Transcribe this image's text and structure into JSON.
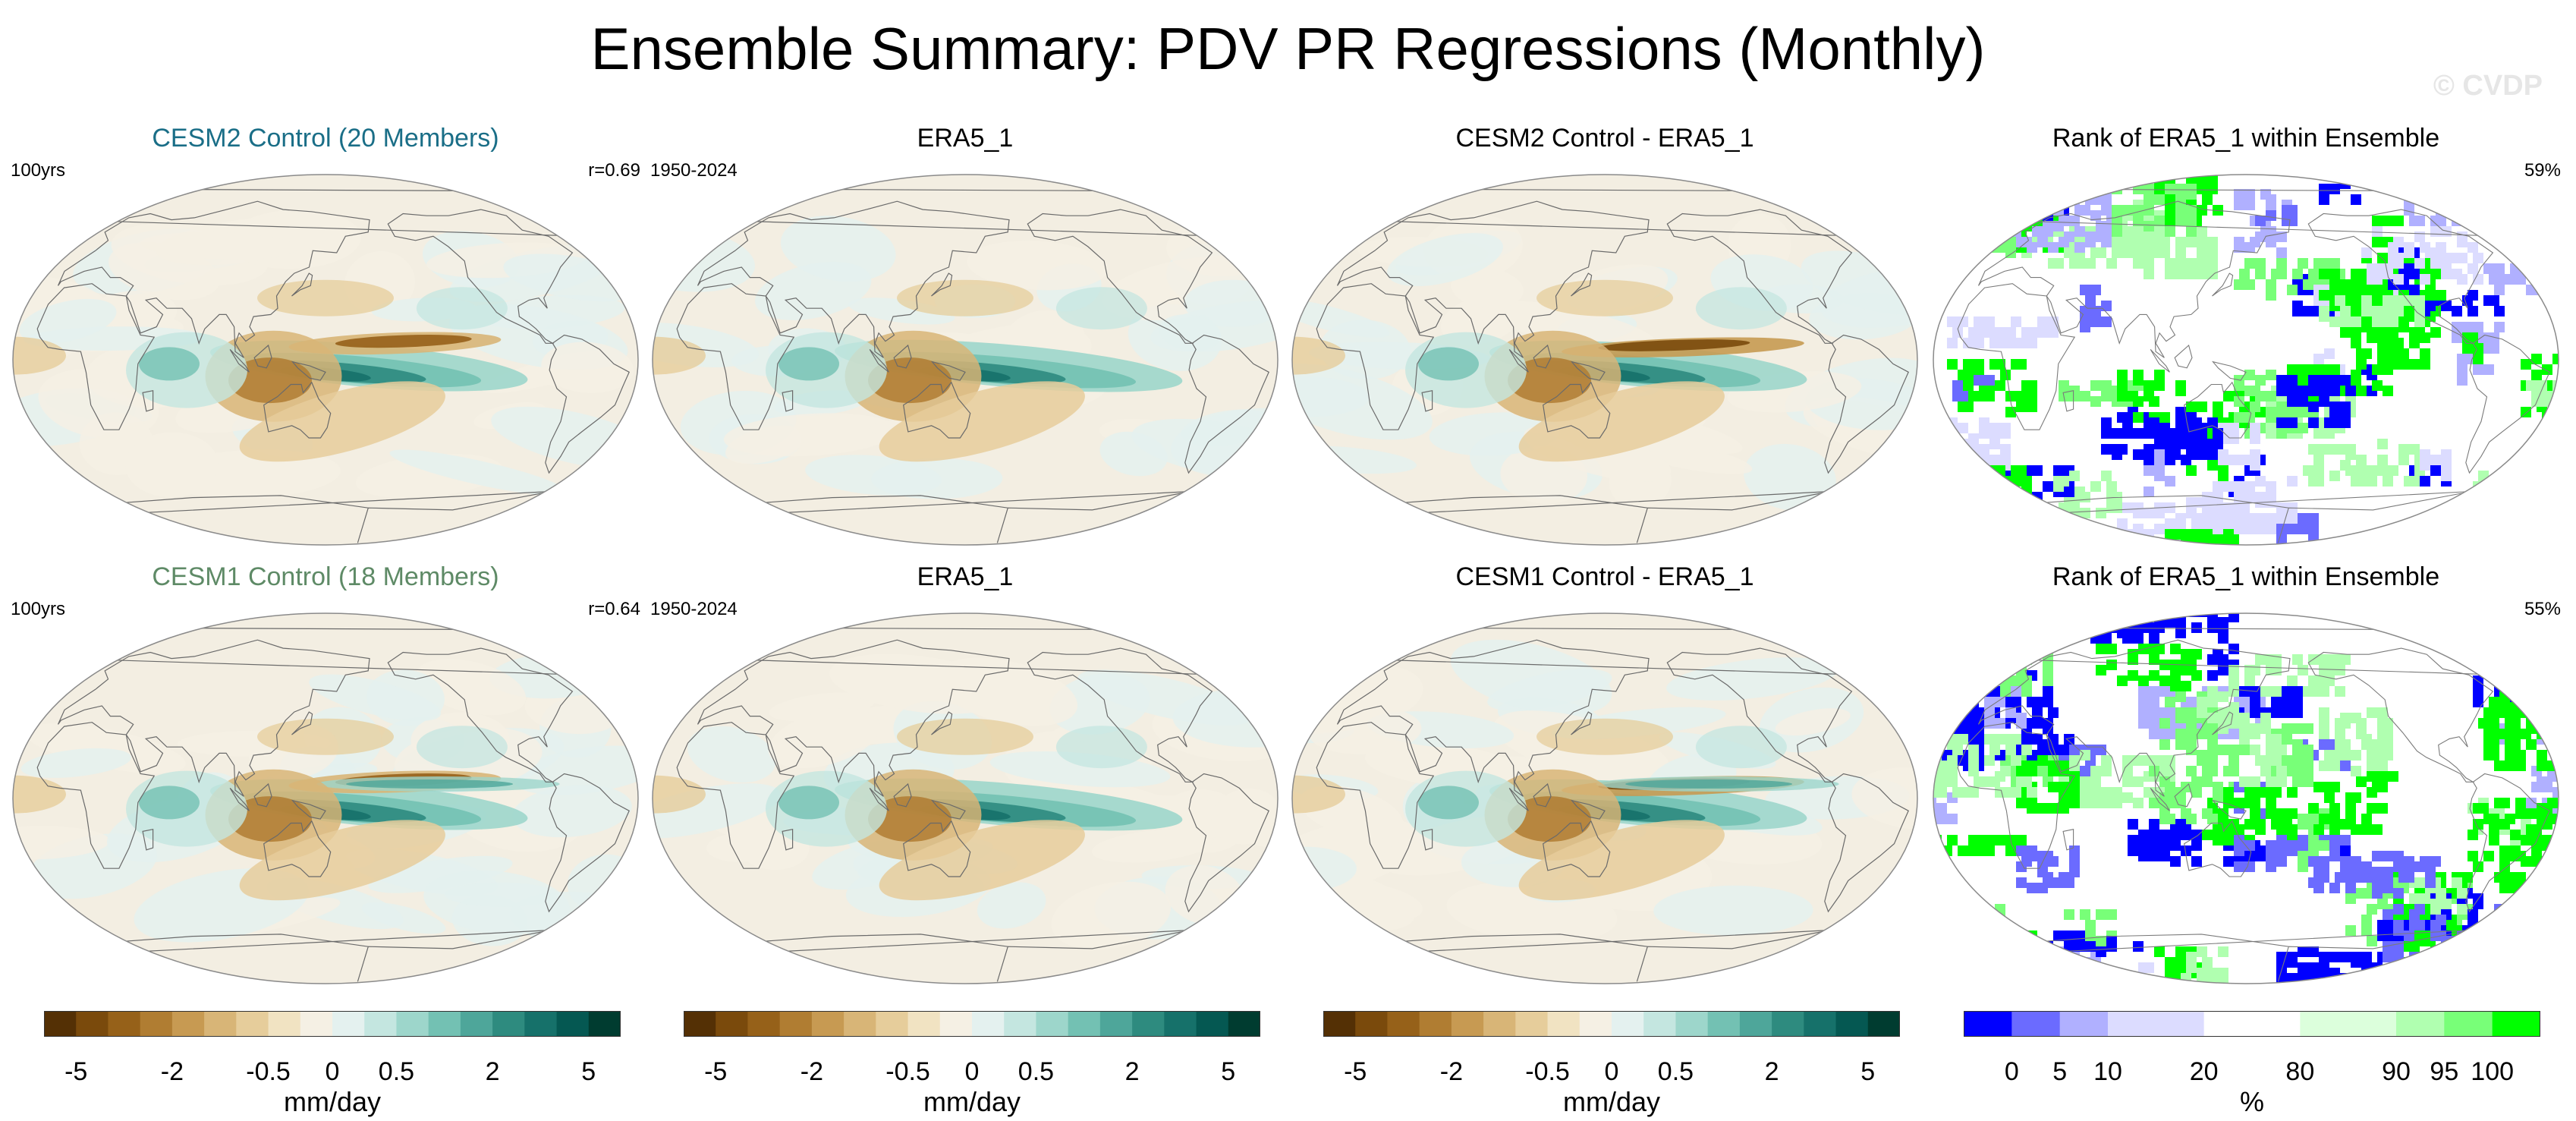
{
  "title": "Ensemble Summary: PDV PR Regressions (Monthly)",
  "watermark": "© CVDP",
  "colors": {
    "cesm2_title": "#1a6e87",
    "cesm1_title": "#5e8a66",
    "land_outline": "#555555",
    "map_border": "#888888"
  },
  "panels": [
    {
      "title": "CESM2 Control (20 Members)",
      "left": "100yrs",
      "right": "r=0.69",
      "title_color": "#1a6e87",
      "kind": "pr",
      "variant": 0
    },
    {
      "title": "ERA5_1",
      "left": "1950-2024",
      "right": "",
      "title_color": "#000000",
      "kind": "pr",
      "variant": 1
    },
    {
      "title": "CESM2 Control - ERA5_1",
      "left": "",
      "right": "",
      "title_color": "#000000",
      "kind": "pr",
      "variant": 2
    },
    {
      "title": "Rank of ERA5_1 within Ensemble",
      "left": "",
      "right": "59%",
      "title_color": "#000000",
      "kind": "rank",
      "variant": 3
    },
    {
      "title": "CESM1 Control (18 Members)",
      "left": "100yrs",
      "right": "r=0.64",
      "title_color": "#5e8a66",
      "kind": "pr",
      "variant": 4
    },
    {
      "title": "ERA5_1",
      "left": "1950-2024",
      "right": "",
      "title_color": "#000000",
      "kind": "pr",
      "variant": 5
    },
    {
      "title": "CESM1 Control - ERA5_1",
      "left": "",
      "right": "",
      "title_color": "#000000",
      "kind": "pr",
      "variant": 6
    },
    {
      "title": "Rank of ERA5_1 within Ensemble",
      "left": "",
      "right": "55%",
      "title_color": "#000000",
      "kind": "rank",
      "variant": 7
    }
  ],
  "colorbars": [
    {
      "label": "mm/day",
      "colors": [
        "#543005",
        "#7a4a0c",
        "#966119",
        "#b07d32",
        "#c79a52",
        "#d8b577",
        "#e6cd9b",
        "#f1e3c2",
        "#f5f0e4",
        "#e4f1ef",
        "#c4e6e0",
        "#9dd6cb",
        "#73c1b3",
        "#4ea69a",
        "#2e8b7f",
        "#16716a",
        "#055852",
        "#003c30"
      ],
      "ticks": [
        "-5",
        "-2",
        "-0.5",
        "0",
        "0.5",
        "2",
        "5"
      ],
      "tick_edges": [
        1,
        4,
        7,
        9,
        11,
        14,
        17
      ]
    },
    {
      "label": "mm/day",
      "colors": [
        "#543005",
        "#7a4a0c",
        "#966119",
        "#b07d32",
        "#c79a52",
        "#d8b577",
        "#e6cd9b",
        "#f1e3c2",
        "#f5f0e4",
        "#e4f1ef",
        "#c4e6e0",
        "#9dd6cb",
        "#73c1b3",
        "#4ea69a",
        "#2e8b7f",
        "#16716a",
        "#055852",
        "#003c30"
      ],
      "ticks": [
        "-5",
        "-2",
        "-0.5",
        "0",
        "0.5",
        "2",
        "5"
      ],
      "tick_edges": [
        1,
        4,
        7,
        9,
        11,
        14,
        17
      ]
    },
    {
      "label": "mm/day",
      "colors": [
        "#543005",
        "#7a4a0c",
        "#966119",
        "#b07d32",
        "#c79a52",
        "#d8b577",
        "#e6cd9b",
        "#f1e3c2",
        "#f5f0e4",
        "#e4f1ef",
        "#c4e6e0",
        "#9dd6cb",
        "#73c1b3",
        "#4ea69a",
        "#2e8b7f",
        "#16716a",
        "#055852",
        "#003c30"
      ],
      "ticks": [
        "-5",
        "-2",
        "-0.5",
        "0",
        "0.5",
        "2",
        "5"
      ],
      "tick_edges": [
        1,
        4,
        7,
        9,
        11,
        14,
        17
      ]
    },
    {
      "label": "%",
      "colors": [
        "#0000ff",
        "#6b6bff",
        "#b0b0ff",
        "#dcdcff",
        "#dcdcff",
        "#ffffff",
        "#ffffff",
        "#dcffdc",
        "#dcffdc",
        "#b0ffb0",
        "#78ff78",
        "#00ff00"
      ],
      "ticks": [
        "0",
        "5",
        "10",
        "20",
        "80",
        "90",
        "95",
        "100"
      ],
      "tick_edges": [
        1,
        2,
        3,
        5,
        7,
        9,
        10,
        11
      ]
    }
  ],
  "chart_data": [
    {
      "type": "heatmap",
      "title": "CESM2 Control (20 Members)",
      "subtitle_left": "100yrs",
      "subtitle_right": "r=0.69",
      "field": "PR regression onto PDV",
      "units": "mm/day",
      "levels": [
        -5,
        -2,
        -0.5,
        0,
        0.5,
        2,
        5
      ],
      "pattern_correlation": 0.69
    },
    {
      "type": "heatmap",
      "title": "ERA5_1",
      "subtitle_left": "1950-2024",
      "units": "mm/day",
      "levels": [
        -5,
        -2,
        -0.5,
        0,
        0.5,
        2,
        5
      ]
    },
    {
      "type": "heatmap",
      "title": "CESM2 Control - ERA5_1",
      "units": "mm/day",
      "levels": [
        -5,
        -2,
        -0.5,
        0,
        0.5,
        2,
        5
      ]
    },
    {
      "type": "heatmap",
      "title": "Rank of ERA5_1 within Ensemble",
      "subtitle_right": "59%",
      "units": "%",
      "levels": [
        0,
        5,
        10,
        20,
        80,
        90,
        95,
        100
      ]
    },
    {
      "type": "heatmap",
      "title": "CESM1 Control (18 Members)",
      "subtitle_left": "100yrs",
      "subtitle_right": "r=0.64",
      "units": "mm/day",
      "levels": [
        -5,
        -2,
        -0.5,
        0,
        0.5,
        2,
        5
      ],
      "pattern_correlation": 0.64
    },
    {
      "type": "heatmap",
      "title": "ERA5_1",
      "subtitle_left": "1950-2024",
      "units": "mm/day",
      "levels": [
        -5,
        -2,
        -0.5,
        0,
        0.5,
        2,
        5
      ]
    },
    {
      "type": "heatmap",
      "title": "CESM1 Control - ERA5_1",
      "units": "mm/day",
      "levels": [
        -5,
        -2,
        -0.5,
        0,
        0.5,
        2,
        5
      ]
    },
    {
      "type": "heatmap",
      "title": "Rank of ERA5_1 within Ensemble",
      "subtitle_right": "55%",
      "units": "%",
      "levels": [
        0,
        5,
        10,
        20,
        80,
        90,
        95,
        100
      ]
    }
  ]
}
